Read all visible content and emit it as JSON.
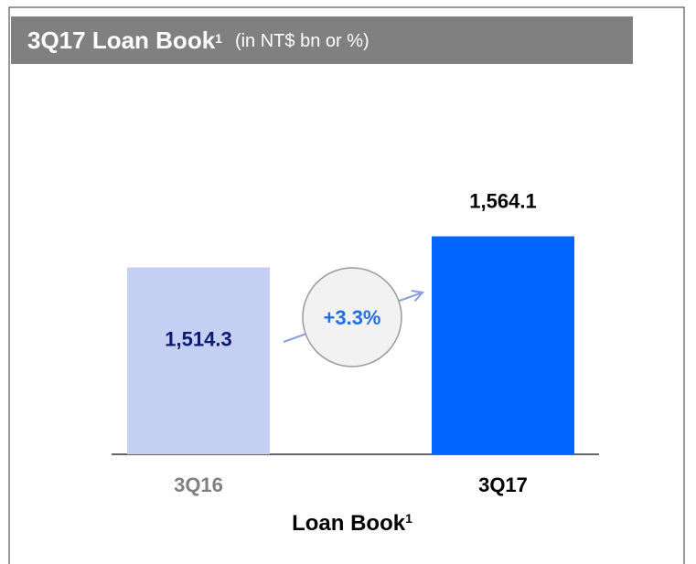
{
  "chart_data": {
    "type": "bar",
    "title": "3Q17 Loan Book",
    "title_superscript": "1",
    "subtitle": "(in NT$ bn or %)",
    "x_label": "Loan Book",
    "x_label_superscript": "1",
    "categories": [
      "3Q16",
      "3Q17"
    ],
    "values": [
      1514.3,
      1564.1
    ],
    "value_labels": [
      "1,514.3",
      "1,564.1"
    ],
    "colors": [
      "#c5cef3",
      "#0066ff"
    ],
    "ylim": [
      1215,
      1600
    ],
    "annotation": "+3.3%"
  }
}
